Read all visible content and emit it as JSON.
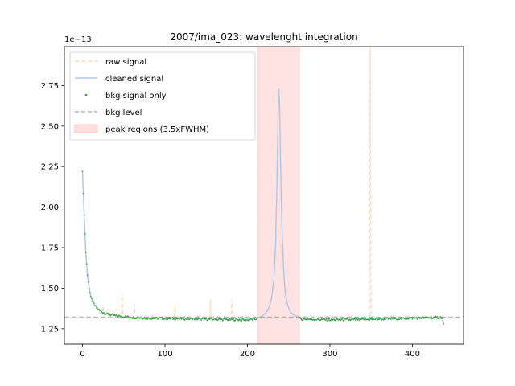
{
  "chart_data": {
    "type": "line",
    "title": "2007/ima_023: wavelenght integration",
    "xlabel": "",
    "ylabel": "",
    "y_offset_text": "1e−13",
    "xlim": [
      -22,
      462
    ],
    "ylim": [
      1.155,
      2.99
    ],
    "x_ticks": [
      0,
      100,
      200,
      300,
      400
    ],
    "x_tick_labels": [
      "0",
      "100",
      "200",
      "300",
      "400"
    ],
    "y_ticks": [
      1.25,
      1.5,
      1.75,
      2.0,
      2.25,
      2.5,
      2.75
    ],
    "y_tick_labels": [
      "1.25",
      "1.50",
      "1.75",
      "2.00",
      "2.25",
      "2.50",
      "2.75"
    ],
    "grid": false,
    "legend_position": "upper-left",
    "colors": {
      "raw": "#ffbb78",
      "cleaned": "#aec7e8",
      "bkg_points": "#2ca02c",
      "bkg_level": "#7f7f7f",
      "peak_region": "#ff9896"
    },
    "legend": [
      {
        "label": "raw signal",
        "style": "dashed-line",
        "color": "#ffbb78"
      },
      {
        "label": "cleaned signal",
        "style": "solid-line",
        "color": "#aec7e8"
      },
      {
        "label": "bkg signal only",
        "style": "point",
        "color": "#2ca02c"
      },
      {
        "label": "bkg level",
        "style": "dashed-line",
        "color": "#7f7f7f"
      },
      {
        "label": "peak regions (3.5xFWHM)",
        "style": "patch",
        "color": "#ff9896"
      }
    ],
    "bkg_level": 1.322,
    "peak_regions": [
      [
        213,
        263
      ]
    ],
    "baseline_curve": {
      "x": [
        0,
        2,
        4,
        6,
        8,
        10,
        13,
        16,
        20,
        25,
        30,
        35,
        40,
        50,
        60,
        80,
        100,
        120,
        140,
        160,
        180,
        200,
        210,
        214,
        263,
        280,
        300,
        320,
        340,
        360,
        380,
        400,
        420,
        436,
        438
      ],
      "y": [
        2.22,
        1.95,
        1.72,
        1.58,
        1.5,
        1.45,
        1.41,
        1.385,
        1.365,
        1.35,
        1.34,
        1.335,
        1.33,
        1.325,
        1.32,
        1.315,
        1.313,
        1.312,
        1.31,
        1.308,
        1.306,
        1.305,
        1.31,
        1.318,
        1.31,
        1.308,
        1.305,
        1.305,
        1.306,
        1.31,
        1.312,
        1.315,
        1.318,
        1.32,
        1.28
      ]
    },
    "peak_curve": {
      "x": [
        214,
        218,
        222,
        226,
        229,
        232,
        234,
        236,
        237,
        238,
        239,
        240,
        242,
        244,
        246,
        249,
        252,
        256,
        260,
        263
      ],
      "y": [
        1.32,
        1.33,
        1.345,
        1.38,
        1.43,
        1.55,
        1.75,
        2.2,
        2.55,
        2.73,
        2.62,
        2.3,
        1.85,
        1.6,
        1.46,
        1.39,
        1.355,
        1.335,
        1.325,
        1.32
      ]
    },
    "raw_spikes": [
      {
        "x": 25,
        "y": 1.39
      },
      {
        "x": 33,
        "y": 1.36
      },
      {
        "x": 48,
        "y": 1.47
      },
      {
        "x": 63,
        "y": 1.4
      },
      {
        "x": 85,
        "y": 1.34
      },
      {
        "x": 112,
        "y": 1.4
      },
      {
        "x": 140,
        "y": 1.34
      },
      {
        "x": 155,
        "y": 1.43
      },
      {
        "x": 181,
        "y": 1.43
      },
      {
        "x": 322,
        "y": 1.34
      },
      {
        "x": 349,
        "y": 2.99
      },
      {
        "x": 375,
        "y": 1.34
      }
    ]
  }
}
